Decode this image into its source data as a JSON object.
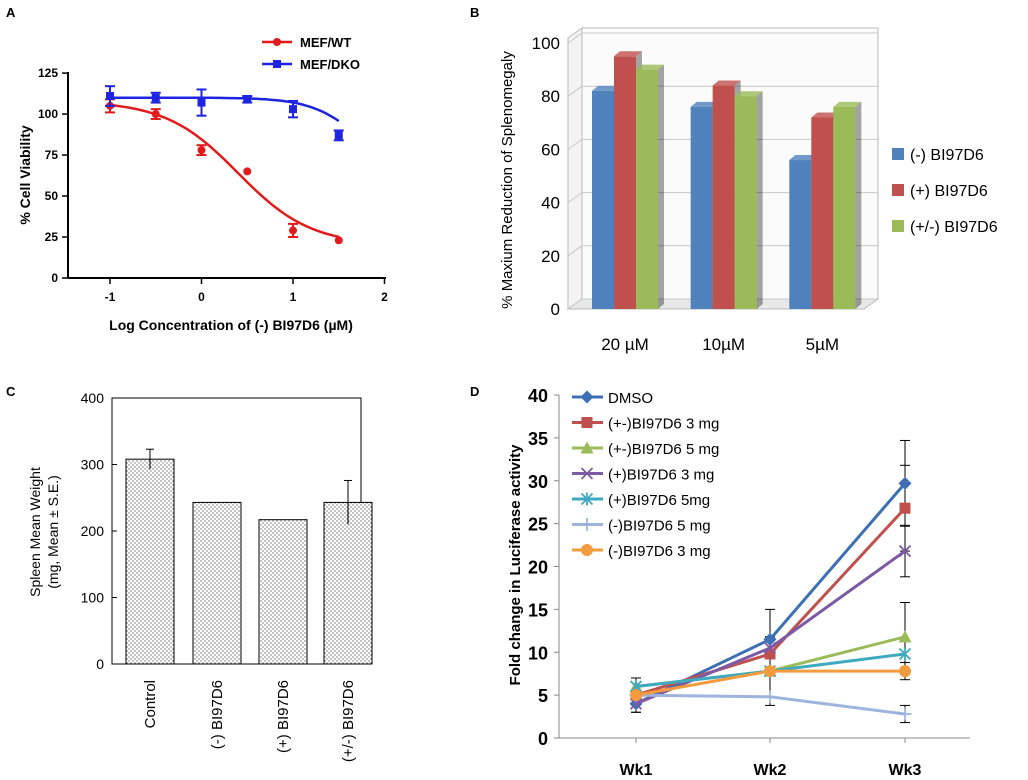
{
  "colors": {
    "red": "#e31a1c",
    "blue": "#1f24e0",
    "bar_blue": "#4f81bd",
    "bar_red": "#c0504d",
    "bar_green": "#9bbb59",
    "dmso": "#3d6fb4",
    "s1": "#c0504d",
    "s2": "#9bbb59",
    "s3": "#7c5aa6",
    "s4": "#3fa9c0",
    "s5": "#9db5dc",
    "s6": "#f39b3d"
  },
  "chart_data": [
    {
      "panel": "A",
      "type": "scatter",
      "xlabel": "Log Concentration of (-) BI97D6 (µM)",
      "ylabel": "% Cell Viability",
      "xlim": [
        -1.5,
        2
      ],
      "ylim": [
        0,
        125
      ],
      "xticks": [
        "-1",
        "0",
        "1",
        "2"
      ],
      "yticks": [
        "0",
        "25",
        "50",
        "75",
        "100",
        "125"
      ],
      "series": [
        {
          "name": "MEF/WT",
          "color": "red",
          "marker": "circle",
          "x": [
            -1,
            -0.5,
            0,
            0.5,
            1,
            1.5
          ],
          "y": [
            105,
            100,
            78,
            65,
            29,
            23
          ],
          "err": [
            4,
            3,
            3,
            0,
            4,
            0
          ],
          "fit": {
            "top": 108,
            "bottom": 20,
            "ic50": 0.4,
            "hill": 1.1
          }
        },
        {
          "name": "MEF/DKO",
          "color": "blue",
          "marker": "square",
          "x": [
            -1,
            -0.5,
            0,
            0.5,
            1,
            1.5
          ],
          "y": [
            111,
            110,
            107,
            109,
            103,
            87
          ],
          "err": [
            6,
            3,
            8,
            2,
            5,
            3
          ],
          "fit": {
            "top": 110,
            "bottom": 60,
            "ic50": 1.75,
            "hill": 1.6
          }
        }
      ]
    },
    {
      "panel": "B",
      "type": "bar",
      "ylabel": "% Maxium  Reduction  of  Splenomegaly",
      "categories": [
        "20 µM",
        "10µM",
        "5µM"
      ],
      "ylim": [
        0,
        100
      ],
      "yticks": [
        "0",
        "20",
        "40",
        "60",
        "80",
        "100"
      ],
      "series": [
        {
          "name": "(-) BI97D6",
          "color": "bar_blue",
          "values": [
            82,
            76,
            56
          ]
        },
        {
          "name": "(+) BI97D6",
          "color": "bar_red",
          "values": [
            95,
            84,
            72
          ]
        },
        {
          "name": "(+/-) BI97D6",
          "color": "bar_green",
          "values": [
            90,
            80,
            76
          ]
        }
      ]
    },
    {
      "panel": "C",
      "type": "bar",
      "ylabel_line1": "Spleen Mean Weight",
      "ylabel_line2": "(mg, Mean ± S.E.)",
      "categories": [
        "Control",
        "(-) BI97D6",
        "(+) BI97D6",
        "(+/-) BI97D6"
      ],
      "values": [
        308,
        243,
        217,
        243
      ],
      "err": [
        15,
        0,
        0,
        33
      ],
      "ylim": [
        0,
        400
      ],
      "yticks": [
        "0",
        "100",
        "200",
        "300",
        "400"
      ]
    },
    {
      "panel": "D",
      "type": "line",
      "ylabel": "Fold change in Luciferase activity",
      "categories": [
        "Wk1",
        "Wk2",
        "Wk3"
      ],
      "ylim": [
        0,
        40
      ],
      "yticks": [
        "0",
        "5",
        "10",
        "15",
        "20",
        "25",
        "30",
        "35",
        "40"
      ],
      "series": [
        {
          "name": "DMSO",
          "color": "dmso",
          "marker": "diamond",
          "values": [
            4,
            11.5,
            29.7
          ],
          "err": [
            1,
            3.5,
            5
          ]
        },
        {
          "name": "(+-)BI97D6 3 mg",
          "color": "s1",
          "marker": "square",
          "values": [
            5,
            9.8,
            26.8
          ],
          "err": [
            0,
            2,
            5
          ]
        },
        {
          "name": "(+-)BI97D6 5 mg",
          "color": "s2",
          "marker": "triangle",
          "values": [
            6,
            7.8,
            11.8
          ],
          "err": [
            0,
            0,
            4
          ]
        },
        {
          "name": "(+)BI97D6 3 mg",
          "color": "s3",
          "marker": "x",
          "values": [
            4,
            10.5,
            21.8
          ],
          "err": [
            0,
            0,
            3
          ]
        },
        {
          "name": "(+)BI97D6 5mg",
          "color": "s4",
          "marker": "asterisk",
          "values": [
            6,
            7.8,
            9.8
          ],
          "err": [
            0,
            0,
            0
          ]
        },
        {
          "name": "(-)BI97D6 5 mg",
          "color": "s5",
          "marker": "plus",
          "values": [
            5,
            4.8,
            2.8
          ],
          "err": [
            0,
            0,
            1
          ]
        },
        {
          "name": "(-)BI97D6 3 mg",
          "color": "s6",
          "marker": "circle",
          "values": [
            5,
            7.8,
            7.8
          ],
          "err": [
            2,
            4,
            1
          ]
        }
      ]
    }
  ],
  "panels": {
    "a": "A",
    "b": "B",
    "c": "C",
    "d": "D"
  }
}
